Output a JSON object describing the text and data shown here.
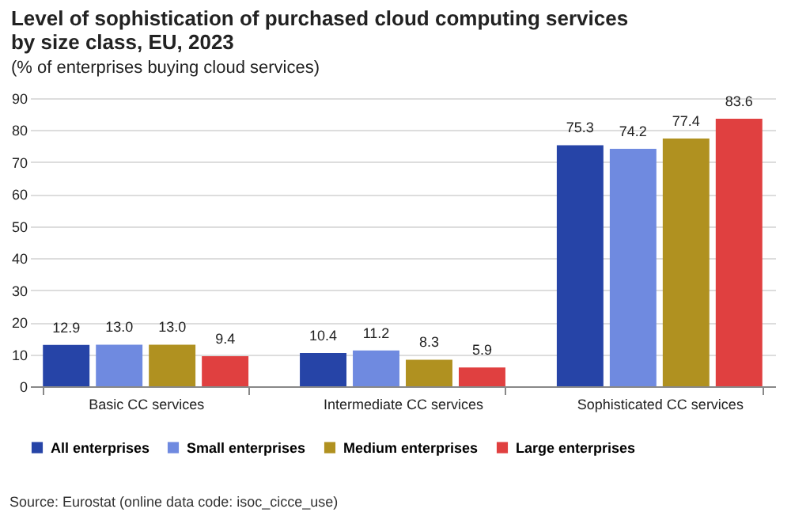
{
  "chart_data": {
    "type": "bar",
    "title": "Level of sophistication of purchased cloud computing services by size class, EU, 2023",
    "subtitle": "(% of enterprises buying cloud services)",
    "categories": [
      "Basic CC services",
      "Intermediate CC services",
      "Sophisticated CC services"
    ],
    "series": [
      {
        "name": "All enterprises",
        "color": "#2644a7",
        "values": [
          12.9,
          10.4,
          75.3
        ],
        "value_labels": [
          "12.9",
          "10.4",
          "75.3"
        ]
      },
      {
        "name": "Small enterprises",
        "color": "#6f8ae0",
        "values": [
          13.0,
          11.2,
          74.2
        ],
        "value_labels": [
          "13.0",
          "11.2",
          "74.2"
        ]
      },
      {
        "name": "Medium enterprises",
        "color": "#b09120",
        "values": [
          13.0,
          8.3,
          77.4
        ],
        "value_labels": [
          "13.0",
          "8.3",
          "77.4"
        ]
      },
      {
        "name": "Large enterprises",
        "color": "#e04040",
        "values": [
          9.4,
          5.9,
          83.6
        ],
        "value_labels": [
          "9.4",
          "5.9",
          "83.6"
        ]
      }
    ],
    "ylim": [
      0,
      90
    ],
    "yticks": [
      0,
      10,
      20,
      30,
      40,
      50,
      60,
      70,
      80,
      90
    ],
    "grid": "y",
    "legend": "bottom",
    "annotations": [
      "Source: Eurostat (online data code: isoc_cicce_use)"
    ]
  }
}
